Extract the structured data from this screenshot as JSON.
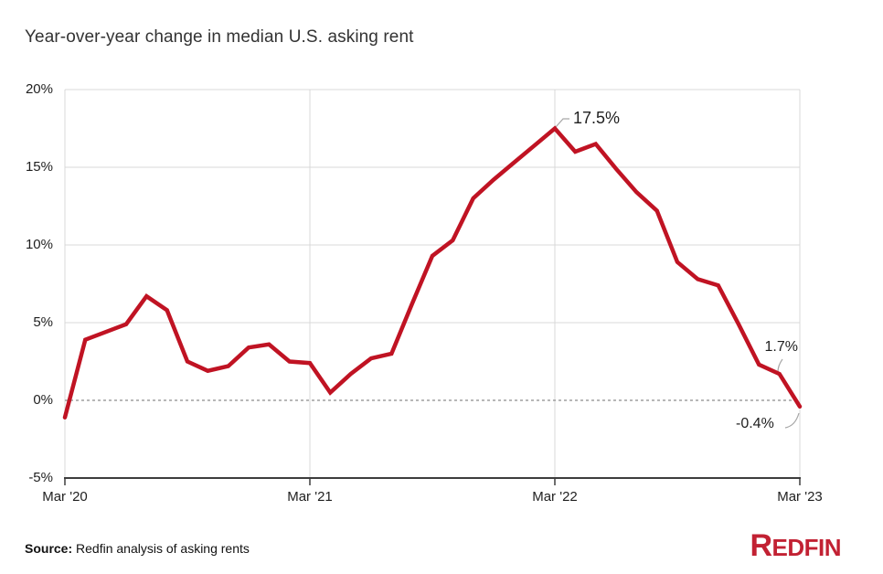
{
  "title": "Year-over-year change in median U.S. asking rent",
  "y_axis": {
    "ticks": [
      "20%",
      "15%",
      "10%",
      "5%",
      "0%",
      "-5%"
    ]
  },
  "x_axis": {
    "ticks": [
      "Mar '20",
      "Mar '21",
      "Mar '22",
      "Mar '23"
    ]
  },
  "annotations": {
    "peak": "17.5%",
    "feb_2023": "1.7%",
    "mar_2023": "-0.4%"
  },
  "source": {
    "label": "Source:",
    "text": " Redfin analysis of asking rents"
  },
  "logo": {
    "text": "Redfin"
  },
  "colors": {
    "line": "#c01323",
    "logo": "#c22133",
    "grid": "#d9d9d9",
    "axis": "#3d3d3d",
    "zero_line": "#8c8c8c",
    "connector": "#a6a6a6"
  },
  "chart_data": {
    "type": "line",
    "title": "Year-over-year change in median U.S. asking rent",
    "unit": "percent change year-over-year",
    "x": [
      "Mar '20",
      "Apr '20",
      "May '20",
      "Jun '20",
      "Jul '20",
      "Aug '20",
      "Sep '20",
      "Oct '20",
      "Nov '20",
      "Dec '20",
      "Jan '21",
      "Feb '21",
      "Mar '21",
      "Apr '21",
      "May '21",
      "Jun '21",
      "Jul '21",
      "Aug '21",
      "Sep '21",
      "Oct '21",
      "Nov '21",
      "Dec '21",
      "Jan '22",
      "Feb '22",
      "Mar '22",
      "Apr '22",
      "May '22",
      "Jun '22",
      "Jul '22",
      "Aug '22",
      "Sep '22",
      "Oct '22",
      "Nov '22",
      "Dec '22",
      "Jan '23",
      "Feb '23",
      "Mar '23"
    ],
    "values": [
      -1.1,
      3.9,
      4.4,
      4.9,
      6.7,
      5.8,
      2.5,
      1.9,
      2.2,
      3.4,
      3.6,
      2.5,
      2.4,
      0.5,
      1.7,
      2.7,
      3.0,
      6.2,
      9.3,
      10.3,
      13.0,
      14.2,
      15.3,
      16.4,
      17.5,
      16.0,
      16.5,
      14.9,
      13.4,
      12.2,
      8.9,
      7.8,
      7.4,
      4.9,
      2.3,
      1.7,
      -0.4
    ],
    "ylim": [
      -5,
      20
    ],
    "yticks": [
      20,
      15,
      10,
      5,
      0,
      -5
    ],
    "xticks": [
      "Mar '20",
      "Mar '21",
      "Mar '22",
      "Mar '23"
    ],
    "grid": "light horizontal gridlines; vertical gridlines at yearly ticks; dashed line at 0%",
    "legend": "none",
    "annotations": [
      {
        "x": "Mar '22",
        "value": 17.5,
        "label": "17.5%"
      },
      {
        "x": "Feb '23",
        "value": 1.7,
        "label": "1.7%"
      },
      {
        "x": "Mar '23",
        "value": -0.4,
        "label": "-0.4%"
      }
    ]
  }
}
